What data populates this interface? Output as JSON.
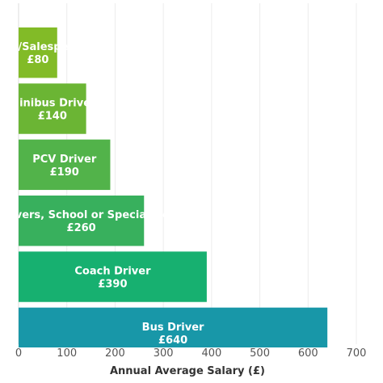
{
  "chart_data": {
    "type": "bar",
    "orientation": "horizontal",
    "categories": [
      "Driver/Salesperson",
      "Minibus Driver",
      "PCV Driver",
      "Bus Drivers, School or Special Needs",
      "Coach Driver",
      "Bus Driver"
    ],
    "values": [
      80,
      140,
      190,
      260,
      390,
      640
    ],
    "value_labels": [
      "£80",
      "£140",
      "£190",
      "£260",
      "£390",
      "£640"
    ],
    "colors": [
      "#82bb27",
      "#6bb534",
      "#52b34a",
      "#38b05d",
      "#17b070",
      "#1897a8"
    ],
    "xlabel": "Annual Average Salary (£)",
    "ylabel": "",
    "xlim": [
      0,
      700
    ],
    "xticks": [
      0,
      100,
      200,
      300,
      400,
      500,
      600,
      700
    ],
    "grid": "vertical",
    "legend": "none"
  }
}
